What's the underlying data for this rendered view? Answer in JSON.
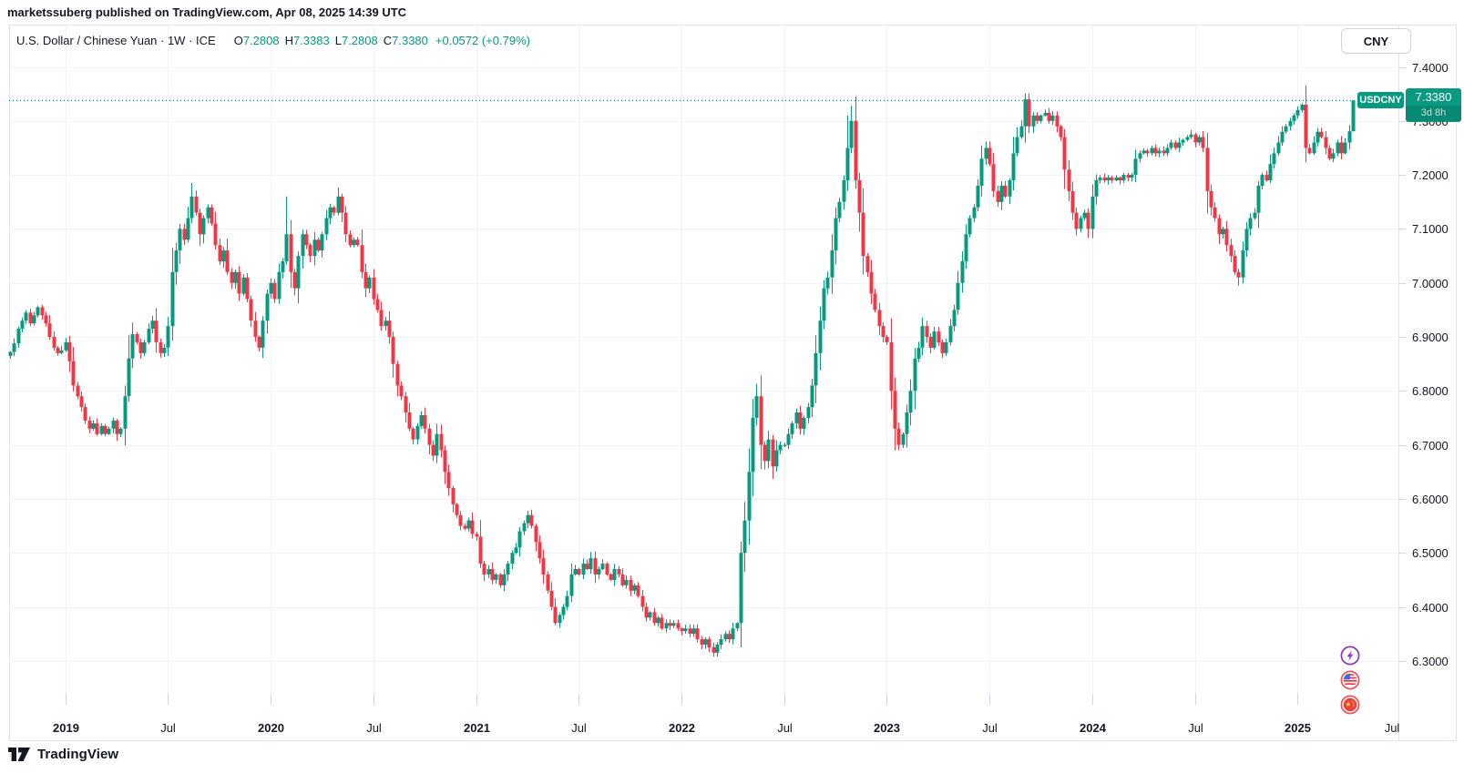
{
  "page": {
    "attribution": "marketssuberg published on TradingView.com, Apr 08, 2025 14:39 UTC"
  },
  "toolbar": {
    "currency_button": "CNY"
  },
  "legend": {
    "title": "U.S. Dollar / Chinese Yuan · 1W · ICE",
    "o_label": "O",
    "o_value": "7.2808",
    "h_label": "H",
    "h_value": "7.3383",
    "l_label": "L",
    "l_value": "7.2808",
    "c_label": "C",
    "c_value": "7.3380",
    "change": "+0.0572 (+0.79%)"
  },
  "price_tag": {
    "symbol": "USDCNY",
    "price": "7.3380",
    "countdown": "3d 8h"
  },
  "footer": {
    "brand": "TradingView"
  },
  "chart_data": {
    "type": "candlestick",
    "symbol": "USDCNY",
    "timeframe": "1W",
    "exchange": "ICE",
    "title": "U.S. Dollar / Chinese Yuan",
    "last_bar": {
      "open": 7.2808,
      "high": 7.3383,
      "low": 7.2808,
      "close": 7.338,
      "change": "+0.0572",
      "change_pct": "+0.79%"
    },
    "current_price_line": 7.338,
    "colors": {
      "up": "#089981",
      "down": "#F23645",
      "grid": "#f0f3fa",
      "axis": "#d1d4dc",
      "price_line": "#089981"
    },
    "y_axis": {
      "labels": [
        "7.4000",
        "7.3000",
        "7.2000",
        "7.1000",
        "7.0000",
        "6.9000",
        "6.8000",
        "6.7000",
        "6.6000",
        "6.5000",
        "6.4000",
        "6.3000"
      ],
      "values": [
        7.4,
        7.3,
        7.2,
        7.1,
        7.0,
        6.9,
        6.8,
        6.7,
        6.6,
        6.5,
        6.4,
        6.3
      ]
    },
    "x_axis": {
      "ticks": [
        {
          "label": "2019",
          "week": 14,
          "major": true
        },
        {
          "label": "Jul",
          "week": 40,
          "major": false
        },
        {
          "label": "2020",
          "week": 66,
          "major": true
        },
        {
          "label": "Jul",
          "week": 92,
          "major": false
        },
        {
          "label": "2021",
          "week": 118,
          "major": true
        },
        {
          "label": "Jul",
          "week": 144,
          "major": false
        },
        {
          "label": "2022",
          "week": 170,
          "major": true
        },
        {
          "label": "Jul",
          "week": 196,
          "major": false
        },
        {
          "label": "2023",
          "week": 222,
          "major": true
        },
        {
          "label": "Jul",
          "week": 248,
          "major": false
        },
        {
          "label": "2024",
          "week": 274,
          "major": true
        },
        {
          "label": "Jul",
          "week": 300,
          "major": false
        },
        {
          "label": "2025",
          "week": 326,
          "major": true
        },
        {
          "label": "Jul",
          "week": 352,
          "major": false
        }
      ]
    },
    "weekly_closes": [
      6.872,
      6.888,
      6.915,
      6.93,
      6.945,
      6.925,
      6.94,
      6.955,
      6.94,
      6.925,
      6.9,
      6.88,
      6.87,
      6.875,
      6.89,
      6.855,
      6.81,
      6.79,
      6.77,
      6.745,
      6.73,
      6.74,
      6.72,
      6.735,
      6.72,
      6.73,
      6.745,
      6.72,
      6.73,
      6.79,
      6.86,
      6.905,
      6.89,
      6.87,
      6.89,
      6.915,
      6.93,
      6.89,
      6.87,
      6.88,
      6.92,
      7.02,
      7.06,
      7.1,
      7.08,
      7.12,
      7.16,
      7.13,
      7.09,
      7.12,
      7.14,
      7.11,
      7.07,
      7.04,
      7.06,
      7.02,
      7.0,
      7.02,
      6.98,
      7.01,
      6.97,
      6.93,
      6.9,
      6.88,
      6.93,
      6.98,
      7.0,
      6.97,
      7.02,
      7.04,
      7.09,
      7.02,
      6.99,
      7.05,
      7.09,
      7.07,
      7.05,
      7.08,
      7.06,
      7.09,
      7.12,
      7.14,
      7.13,
      7.16,
      7.13,
      7.09,
      7.07,
      7.08,
      7.07,
      7.02,
      6.99,
      7.01,
      6.97,
      6.95,
      6.92,
      6.93,
      6.9,
      6.85,
      6.81,
      6.79,
      6.76,
      6.73,
      6.71,
      6.735,
      6.755,
      6.73,
      6.7,
      6.68,
      6.72,
      6.69,
      6.65,
      6.62,
      6.59,
      6.57,
      6.55,
      6.545,
      6.56,
      6.535,
      6.53,
      6.48,
      6.46,
      6.47,
      6.45,
      6.46,
      6.44,
      6.46,
      6.48,
      6.5,
      6.51,
      6.54,
      6.555,
      6.57,
      6.55,
      6.52,
      6.49,
      6.46,
      6.43,
      6.4,
      6.37,
      6.385,
      6.4,
      6.42,
      6.46,
      6.47,
      6.46,
      6.48,
      6.47,
      6.49,
      6.46,
      6.47,
      6.48,
      6.46,
      6.45,
      6.47,
      6.46,
      6.44,
      6.45,
      6.43,
      6.44,
      6.42,
      6.4,
      6.38,
      6.39,
      6.37,
      6.38,
      6.36,
      6.37,
      6.365,
      6.37,
      6.36,
      6.355,
      6.36,
      6.35,
      6.36,
      6.34,
      6.33,
      6.34,
      6.325,
      6.315,
      6.33,
      6.34,
      6.35,
      6.34,
      6.36,
      6.37,
      6.5,
      6.56,
      6.65,
      6.75,
      6.79,
      6.7,
      6.67,
      6.71,
      6.66,
      6.69,
      6.7,
      6.7,
      6.72,
      6.74,
      6.76,
      6.73,
      6.75,
      6.77,
      6.81,
      6.87,
      6.93,
      6.99,
      7.01,
      7.06,
      7.12,
      7.15,
      7.19,
      7.25,
      7.3,
      7.19,
      7.13,
      7.05,
      7.02,
      6.98,
      6.95,
      6.92,
      6.9,
      6.89,
      6.8,
      6.73,
      6.7,
      6.72,
      6.76,
      6.8,
      6.86,
      6.88,
      6.92,
      6.9,
      6.88,
      6.91,
      6.89,
      6.87,
      6.89,
      6.92,
      6.95,
      7.0,
      7.04,
      7.09,
      7.12,
      7.14,
      7.18,
      7.23,
      7.25,
      7.22,
      7.17,
      7.15,
      7.18,
      7.16,
      7.19,
      7.24,
      7.27,
      7.29,
      7.34,
      7.29,
      7.31,
      7.3,
      7.31,
      7.315,
      7.3,
      7.31,
      7.29,
      7.27,
      7.21,
      7.17,
      7.13,
      7.1,
      7.12,
      7.13,
      7.1,
      7.16,
      7.19,
      7.195,
      7.19,
      7.195,
      7.19,
      7.195,
      7.19,
      7.2,
      7.195,
      7.2,
      7.23,
      7.24,
      7.245,
      7.24,
      7.25,
      7.24,
      7.245,
      7.24,
      7.25,
      7.26,
      7.25,
      7.26,
      7.265,
      7.27,
      7.275,
      7.26,
      7.27,
      7.25,
      7.17,
      7.14,
      7.12,
      7.09,
      7.1,
      7.07,
      7.05,
      7.02,
      7.01,
      7.06,
      7.1,
      7.12,
      7.13,
      7.18,
      7.2,
      7.19,
      7.22,
      7.24,
      7.26,
      7.28,
      7.29,
      7.3,
      7.31,
      7.32,
      7.33,
      7.25,
      7.24,
      7.26,
      7.28,
      7.27,
      7.25,
      7.23,
      7.24,
      7.26,
      7.24,
      7.26,
      7.2808,
      7.338
    ],
    "wick_overrides": {
      "46": {
        "high": 7.185
      },
      "70": {
        "high": 7.16
      },
      "83": {
        "high": 7.177
      },
      "178": {
        "low": 6.308
      },
      "189": {
        "high": 6.813
      },
      "212": {
        "high": 7.31
      },
      "213": {
        "high": 7.328
      },
      "225": {
        "low": 6.69
      },
      "257": {
        "high": 7.351
      },
      "311": {
        "low": 6.995
      },
      "327": {
        "high": 7.333
      },
      "340": {
        "high": 7.3383,
        "low": 7.2808
      }
    }
  }
}
